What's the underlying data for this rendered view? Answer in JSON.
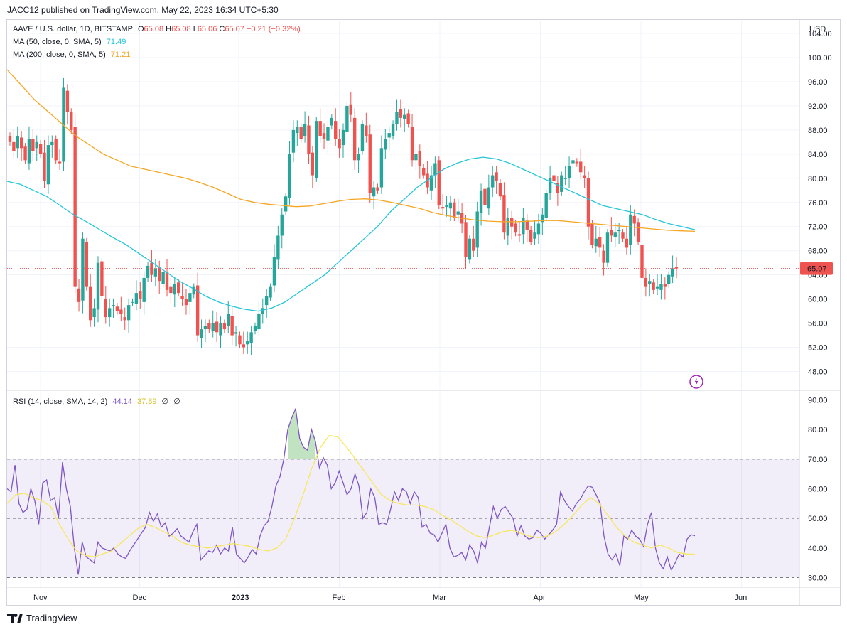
{
  "header": {
    "published_line": "JACC12 published on TradingView.com, May 22, 2023 16:34 UTC+5:30"
  },
  "legend": {
    "symbol": "AAVE / U.S. dollar, 1D, BITSTAMP",
    "o_label": "O",
    "o_value": "65.08",
    "h_label": "H",
    "h_value": "65.08",
    "l_label": "L",
    "l_value": "65.06",
    "c_label": "C",
    "c_value": "65.07",
    "change": "−0.21 (−0.32%)",
    "ma50_label": "MA (50, close, 0, SMA, 5)",
    "ma50_value": "71.49",
    "ma200_label": "MA (200, close, 0, SMA, 5)",
    "ma200_value": "71.21",
    "rsi_label": "RSI (14, close, SMA, 14, 2)",
    "rsi_value": "44.14",
    "rsi_ma_value": "37.89",
    "rsi_extra1": "∅",
    "rsi_extra2": "∅"
  },
  "footer": {
    "brand": "TradingView"
  },
  "colors": {
    "up": "#26a69a",
    "down": "#ef5350",
    "ma50": "#26c6da",
    "ma200": "#f5a623",
    "rsi": "#7e57c2",
    "rsi_ma": "#f7e75c",
    "price_tag": "#ef5350"
  },
  "chart_data": [
    {
      "type": "candlestick",
      "ylabel": "USD",
      "ylim": [
        45,
        106
      ],
      "y_ticks": [
        "104.00",
        "100.00",
        "96.00",
        "92.00",
        "88.00",
        "84.00",
        "80.00",
        "76.00",
        "72.00",
        "68.00",
        "64.00",
        "60.00",
        "56.00",
        "52.00",
        "48.00"
      ],
      "last_price": "65.07",
      "x_ticks": [
        "Nov",
        "Dec",
        "2023",
        "Feb",
        "Mar",
        "Apr",
        "May",
        "Jun"
      ],
      "closes": [
        86.0,
        84.5,
        87.0,
        85.0,
        83.0,
        86.5,
        84.5,
        86.0,
        84.0,
        79.5,
        85.5,
        86.0,
        83.0,
        82.5,
        95.0,
        91.0,
        88.0,
        62.0,
        59.5,
        70.0,
        62.0,
        56.5,
        58.5,
        66.0,
        60.5,
        57.0,
        58.5,
        59.0,
        58.0,
        57.5,
        56.5,
        59.0,
        59.5,
        61.0,
        60.0,
        63.5,
        65.5,
        64.0,
        65.0,
        63.0,
        64.5,
        61.5,
        61.0,
        62.5,
        61.0,
        60.0,
        59.0,
        61.0,
        62.0,
        54.0,
        55.0,
        55.5,
        55.0,
        56.0,
        54.5,
        56.0,
        55.0,
        57.5,
        54.0,
        54.5,
        52.5,
        52.0,
        53.0,
        54.5,
        55.5,
        57.5,
        58.5,
        60.5,
        62.0,
        67.0,
        70.5,
        74.0,
        77.0,
        84.0,
        88.0,
        88.5,
        86.5,
        89.0,
        84.0,
        80.5,
        89.5,
        87.0,
        86.5,
        88.5,
        90.0,
        86.5,
        85.0,
        88.0,
        92.0,
        90.5,
        83.0,
        84.0,
        89.0,
        87.0,
        77.5,
        78.5,
        78.0,
        85.0,
        86.5,
        87.5,
        89.0,
        91.0,
        90.0,
        90.5,
        89.0,
        83.0,
        84.0,
        82.0,
        80.5,
        78.5,
        80.5,
        82.5,
        75.5,
        75.0,
        75.5,
        76.0,
        73.5,
        74.5,
        72.5,
        67.0,
        70.0,
        68.0,
        74.5,
        78.0,
        75.5,
        78.5,
        80.5,
        79.5,
        77.0,
        71.0,
        73.5,
        72.0,
        71.0,
        70.5,
        73.5,
        71.5,
        69.5,
        71.0,
        72.5,
        74.0,
        77.5,
        80.0,
        79.5,
        77.5,
        80.5,
        80.0,
        82.0,
        83.0,
        82.5,
        81.0,
        80.0,
        72.0,
        69.0,
        70.0,
        68.5,
        66.0,
        71.0,
        70.5,
        71.0,
        71.5,
        70.0,
        68.5,
        74.0,
        72.5,
        69.5,
        63.5,
        62.0,
        63.0,
        61.5,
        62.0,
        62.5,
        62.0,
        64.0,
        65.1,
        65.07
      ],
      "ma50": [
        79.5,
        79.0,
        78.0,
        77.0,
        75.5,
        74.0,
        72.8,
        71.5,
        70.2,
        69.0,
        67.5,
        66.0,
        64.5,
        63.0,
        61.8,
        60.5,
        59.5,
        58.8,
        58.3,
        58.0,
        58.5,
        59.5,
        61.0,
        62.5,
        64.0,
        66.0,
        68.0,
        70.0,
        72.0,
        74.5,
        76.5,
        78.5,
        80.0,
        81.5,
        82.5,
        83.2,
        83.5,
        83.2,
        82.5,
        81.5,
        80.5,
        79.5,
        78.5,
        77.5,
        76.5,
        75.5,
        75.0,
        74.5,
        74.0,
        73.2,
        72.5,
        72.0,
        71.49
      ],
      "ma200": [
        98.0,
        95.5,
        93.0,
        91.0,
        89.0,
        87.0,
        85.5,
        84.0,
        83.0,
        82.0,
        81.5,
        81.0,
        80.5,
        80.0,
        79.3,
        78.5,
        77.5,
        76.5,
        76.0,
        75.7,
        75.5,
        75.3,
        75.4,
        75.8,
        76.2,
        76.5,
        76.6,
        76.4,
        76.0,
        75.5,
        75.0,
        74.3,
        73.8,
        73.4,
        73.1,
        72.9,
        72.8,
        72.8,
        72.9,
        73.0,
        73.0,
        72.8,
        72.6,
        72.4,
        72.2,
        72.0,
        71.8,
        71.6,
        71.4,
        71.3,
        71.21
      ]
    },
    {
      "type": "line",
      "ylabel": "RSI",
      "ylim": [
        27,
        93
      ],
      "y_ticks": [
        "90.00",
        "80.00",
        "70.00",
        "60.00",
        "50.00",
        "40.00",
        "30.00"
      ],
      "band": [
        30,
        70
      ],
      "mid": 50,
      "rsi": [
        60.0,
        59.0,
        68.0,
        55.0,
        52.0,
        53.0,
        60.0,
        56.0,
        48.0,
        62.0,
        63.0,
        56.0,
        57.0,
        50.0,
        69.0,
        60.0,
        54.0,
        40.0,
        31.0,
        42.0,
        37.0,
        36.0,
        35.0,
        42.0,
        40.0,
        39.5,
        39.0,
        40.0,
        38.0,
        37.0,
        36.5,
        39.0,
        41.0,
        43.0,
        45.0,
        47.0,
        52.0,
        49.0,
        51.5,
        47.0,
        48.5,
        44.0,
        45.0,
        46.5,
        44.0,
        43.0,
        42.0,
        45.5,
        48.0,
        36.0,
        37.5,
        39.0,
        38.5,
        41.0,
        38.0,
        40.0,
        39.0,
        47.0,
        38.0,
        36.5,
        35.0,
        37.0,
        39.5,
        38.0,
        44.0,
        47.5,
        49.0,
        54.0,
        61.0,
        64.0,
        70.0,
        80.0,
        84.0,
        87.0,
        77.0,
        74.0,
        73.0,
        80.0,
        76.0,
        67.0,
        70.5,
        68.0,
        60.0,
        62.0,
        66.0,
        62.0,
        58.0,
        60.0,
        65.0,
        61.0,
        50.0,
        52.0,
        60.0,
        57.0,
        48.0,
        48.5,
        48.0,
        53.0,
        59.0,
        56.0,
        60.0,
        59.0,
        55.0,
        59.0,
        57.0,
        47.0,
        48.0,
        45.0,
        44.5,
        42.0,
        45.0,
        48.0,
        40.0,
        37.0,
        37.5,
        38.5,
        36.0,
        41.0,
        39.0,
        35.0,
        42.0,
        40.0,
        47.0,
        54.0,
        50.0,
        53.0,
        54.0,
        52.0,
        50.0,
        44.0,
        47.5,
        44.0,
        43.0,
        43.5,
        46.0,
        45.0,
        43.0,
        44.5,
        46.0,
        48.0,
        59.0,
        56.0,
        54.0,
        52.5,
        55.0,
        56.5,
        59.0,
        61.0,
        60.5,
        58.0,
        55.0,
        44.0,
        38.0,
        36.0,
        38.0,
        34.0,
        44.0,
        43.0,
        46.0,
        44.0,
        43.0,
        40.5,
        48.0,
        52.0,
        40.0,
        35.0,
        33.0,
        37.0,
        32.5,
        35.0,
        38.0,
        37.0,
        43.0,
        44.5,
        44.14
      ],
      "rsi_ma": [
        55.0,
        58.0,
        58.5,
        57.0,
        56.0,
        54.0,
        48.0,
        43.0,
        39.0,
        37.5,
        37.0,
        38.0,
        39.0,
        41.5,
        44.0,
        46.5,
        48.0,
        47.0,
        45.5,
        44.0,
        42.0,
        41.0,
        40.5,
        40.0,
        40.5,
        41.0,
        41.5,
        41.0,
        40.5,
        39.5,
        39.0,
        40.0,
        43.0,
        50.0,
        58.0,
        67.0,
        74.0,
        78.0,
        77.5,
        74.0,
        70.0,
        66.0,
        62.0,
        58.0,
        56.0,
        55.0,
        54.5,
        54.5,
        54.0,
        53.0,
        51.0,
        49.5,
        47.5,
        45.5,
        44.0,
        43.5,
        44.5,
        45.5,
        46.0,
        45.0,
        44.0,
        43.5,
        44.0,
        45.5,
        48.0,
        51.0,
        54.5,
        57.0,
        55.0,
        51.0,
        47.0,
        44.0,
        42.0,
        41.0,
        40.0,
        41.0,
        40.0,
        38.5,
        38.0,
        37.89
      ]
    }
  ]
}
